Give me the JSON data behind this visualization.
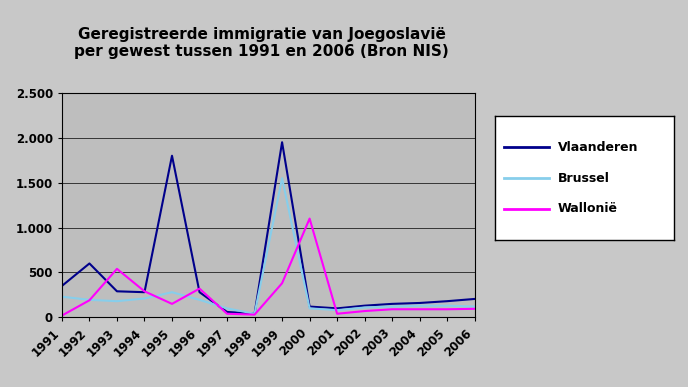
{
  "title": "Geregistreerde immigratie van Joegoslavië\nper gewest tussen 1991 en 2006 (Bron NIS)",
  "years": [
    1991,
    1992,
    1993,
    1994,
    1995,
    1996,
    1997,
    1998,
    1999,
    2000,
    2001,
    2002,
    2003,
    2004,
    2005,
    2006
  ],
  "vlaanderen": [
    350,
    600,
    290,
    280,
    1800,
    280,
    60,
    40,
    1950,
    120,
    100,
    130,
    150,
    160,
    180,
    205
  ],
  "brussel": [
    230,
    195,
    180,
    210,
    280,
    195,
    100,
    40,
    1550,
    100,
    80,
    110,
    120,
    130,
    130,
    120
  ],
  "wallonie": [
    20,
    190,
    540,
    290,
    150,
    320,
    40,
    30,
    380,
    1100,
    40,
    70,
    90,
    90,
    90,
    95
  ],
  "color_vlaanderen": "#00008B",
  "color_brussel": "#87CEEB",
  "color_wallonie": "#FF00FF",
  "ylim": [
    0,
    2500
  ],
  "yticks": [
    0,
    500,
    1000,
    1500,
    2000,
    2500
  ],
  "ytick_labels": [
    "0",
    "500",
    "1.000",
    "1.500",
    "2.000",
    "2.500"
  ],
  "plot_bg": "#BEBEBE",
  "outer_bg": "#C8C8C8",
  "legend_bg": "#FFFFFF",
  "legend_labels": [
    "Vlaanderen",
    "Brussel",
    "Wallonië"
  ],
  "title_fontsize": 11,
  "linewidth": 1.5
}
